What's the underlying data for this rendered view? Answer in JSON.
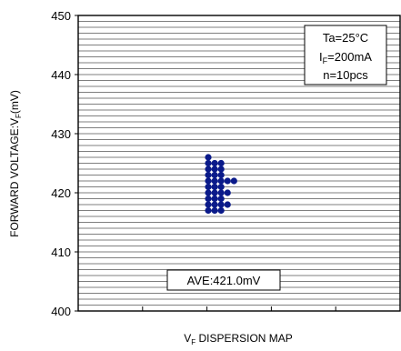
{
  "chart_data": {
    "type": "scatter",
    "title": "",
    "ylabel": {
      "prefix": "FORWARD VOLTAGE:V",
      "subscript": "F",
      "suffix": "(mV)"
    },
    "xlabel": {
      "prefix": "V",
      "subscript": "F",
      "suffix": " DISPERSION MAP"
    },
    "ylim": [
      400,
      450
    ],
    "yticks": [
      {
        "value": 400,
        "label": "400"
      },
      {
        "value": 410,
        "label": "410"
      },
      {
        "value": 420,
        "label": "420"
      },
      {
        "value": 430,
        "label": "430"
      },
      {
        "value": 440,
        "label": "440"
      },
      {
        "value": 450,
        "label": "450"
      }
    ],
    "y_minor_step": 1,
    "xlim": [
      0,
      5
    ],
    "xticks": [
      1,
      2,
      3,
      4
    ],
    "grid": "horizontal",
    "marker_color": "#0a1a8a",
    "conditions": {
      "line1": "Ta=25°C",
      "line2_prefix": "I",
      "line2_subscript": "F",
      "line2_suffix": "=200mA",
      "line3": "n=10pcs"
    },
    "average_label": "AVE:421.0mV",
    "series": [
      {
        "columns": [
          {
            "x": 2.02,
            "y": [
              417,
              418,
              419,
              420,
              421,
              422,
              423,
              424,
              425,
              426
            ]
          },
          {
            "x": 2.12,
            "y": [
              417,
              418,
              419,
              420,
              421,
              422,
              423,
              424,
              425
            ]
          },
          {
            "x": 2.22,
            "y": [
              417,
              418,
              419,
              420,
              421,
              422,
              423,
              424,
              425
            ]
          },
          {
            "x": 2.32,
            "y": [
              418,
              420,
              422
            ]
          },
          {
            "x": 2.42,
            "y": [
              422
            ]
          }
        ]
      }
    ]
  }
}
